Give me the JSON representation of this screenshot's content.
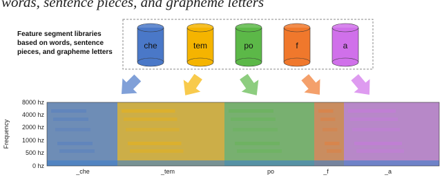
{
  "caption_fragment": "words, sentence pieces, and grapheme letters",
  "library_label": [
    "Feature segment libraries",
    "based on words, sentence",
    "pieces, and grapheme letters"
  ],
  "segments": [
    {
      "label": "che",
      "axis_label": "_che",
      "color": "#4a78c8"
    },
    {
      "label": "tem",
      "axis_label": "_tem",
      "color": "#f5b400"
    },
    {
      "label": "po",
      "axis_label": "po",
      "color": "#5cb848"
    },
    {
      "label": "f",
      "axis_label": "_f",
      "color": "#f0782c"
    },
    {
      "label": "a",
      "axis_label": "_a",
      "color": "#d070ea"
    }
  ],
  "spectrogram": {
    "y_label": "Frequency",
    "y_ticks": [
      "8000 hz",
      "4000 hz",
      "2000 hz",
      "1000 hz",
      "500 hz",
      "0 hz"
    ]
  }
}
